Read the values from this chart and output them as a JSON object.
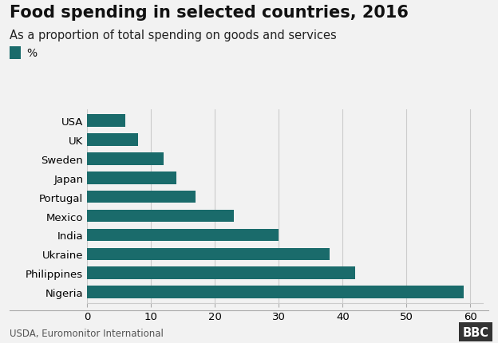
{
  "title": "Food spending in selected countries, 2016",
  "subtitle": "As a proportion of total spending on goods and services",
  "legend_label": "%",
  "source": "USDA, Euromonitor International",
  "countries": [
    "Nigeria",
    "Philippines",
    "Ukraine",
    "India",
    "Mexico",
    "Portugal",
    "Japan",
    "Sweden",
    "UK",
    "USA"
  ],
  "values": [
    59,
    42,
    38,
    30,
    23,
    17,
    14,
    12,
    8,
    6
  ],
  "bar_color": "#1a6b6b",
  "background_color": "#f2f2f2",
  "xlim": [
    0,
    62
  ],
  "xticks": [
    0,
    10,
    20,
    30,
    40,
    50,
    60
  ],
  "title_fontsize": 15,
  "subtitle_fontsize": 10.5,
  "tick_fontsize": 9.5,
  "source_fontsize": 8.5,
  "legend_fontsize": 10
}
